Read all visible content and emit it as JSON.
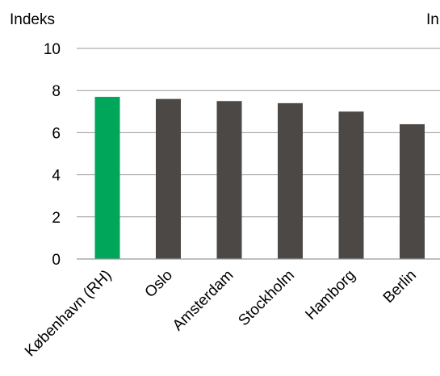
{
  "chart_data": {
    "type": "bar",
    "ylabel": "Indeks",
    "ylabel_right": "In",
    "categories": [
      "København (RH)",
      "Oslo",
      "Amsterdam",
      "Stockholm",
      "Hamborg",
      "Berlin"
    ],
    "values": [
      7.7,
      7.6,
      7.5,
      7.4,
      7.0,
      6.4
    ],
    "highlight_index": 0,
    "ylim": [
      0,
      10
    ],
    "yticks": [
      "0",
      "2",
      "4",
      "6",
      "8",
      "10"
    ],
    "grid": true,
    "colors": {
      "highlight": "#00a65a",
      "default": "#4b4845",
      "grid": "#999999"
    }
  }
}
